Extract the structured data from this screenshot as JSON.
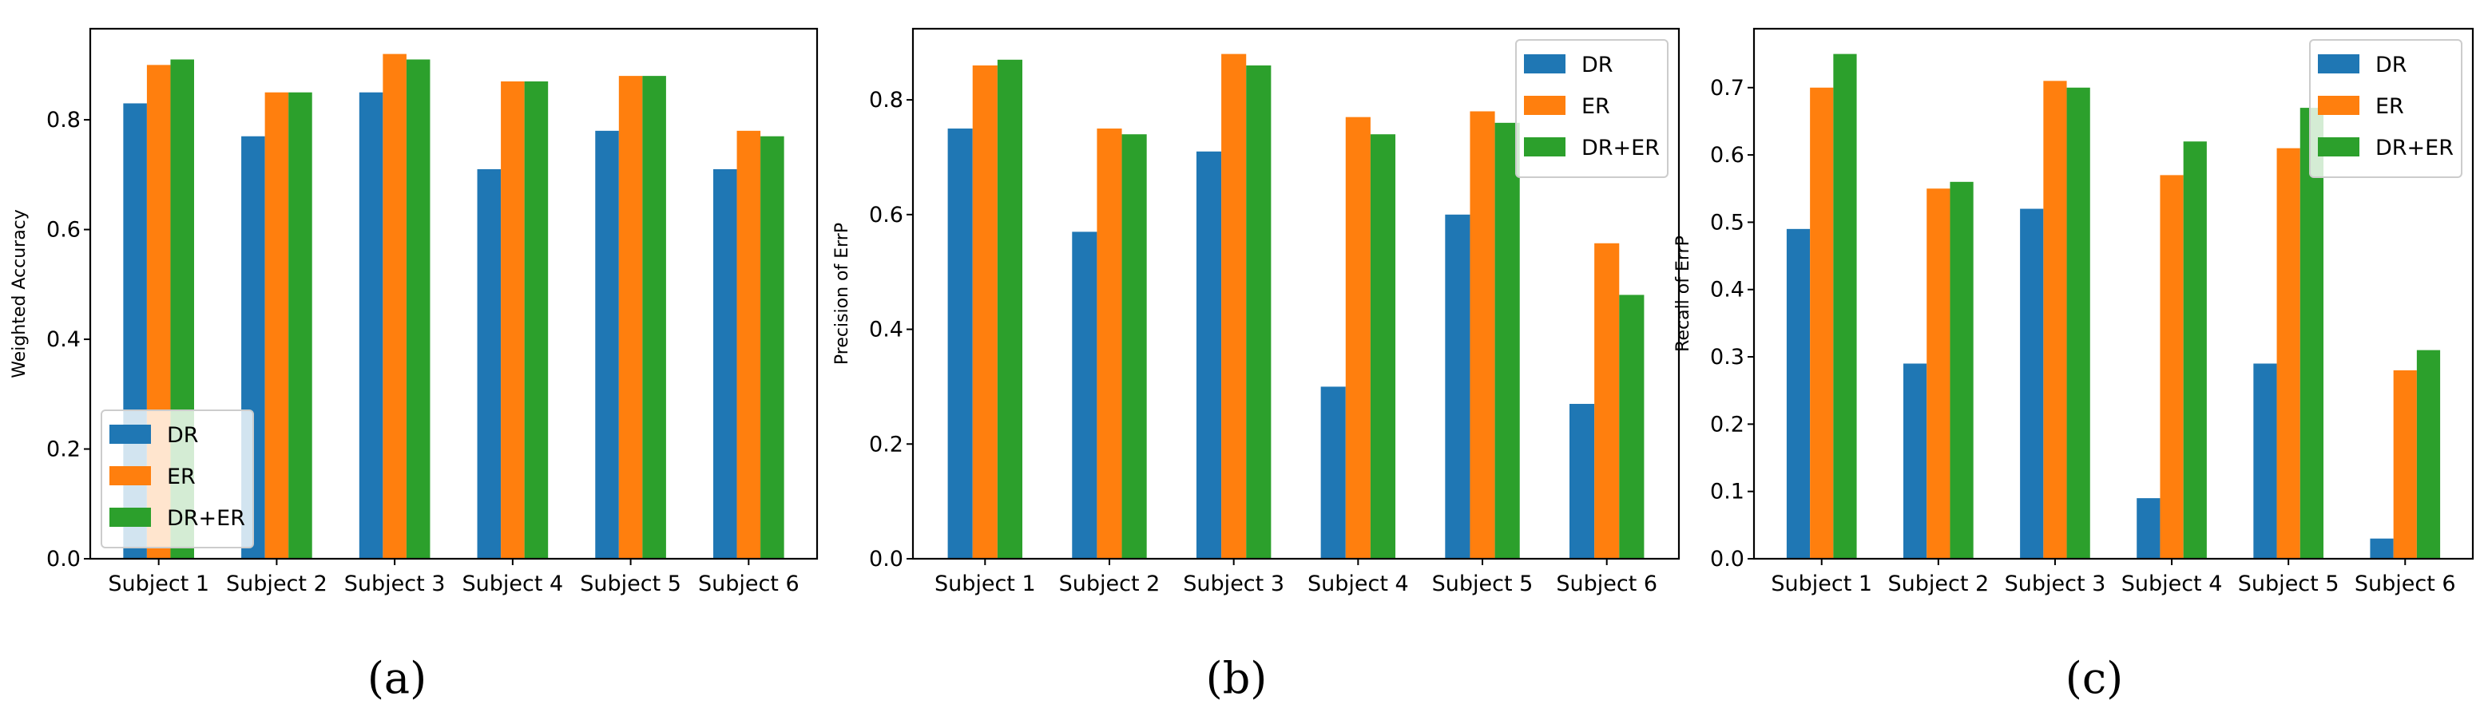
{
  "chart_data": [
    {
      "type": "bar",
      "title": "",
      "caption": "(a)",
      "xlabel": "",
      "ylabel": "Weighted Accuracy",
      "categories": [
        "Subject 1",
        "Subject 2",
        "Subject 3",
        "Subject 4",
        "Subject 5",
        "Subject 6"
      ],
      "series": [
        {
          "name": "DR",
          "color": "#1f77b4",
          "values": [
            0.83,
            0.77,
            0.85,
            0.71,
            0.78,
            0.71
          ]
        },
        {
          "name": "ER",
          "color": "#ff7f0e",
          "values": [
            0.9,
            0.85,
            0.92,
            0.87,
            0.88,
            0.78
          ]
        },
        {
          "name": "DR+ER",
          "color": "#2ca02c",
          "values": [
            0.91,
            0.85,
            0.91,
            0.87,
            0.88,
            0.77
          ]
        }
      ],
      "ylim": [
        0,
        0.966
      ],
      "yticks": [
        "0.0",
        "0.2",
        "0.4",
        "0.6",
        "0.8"
      ],
      "ytick_values": [
        0,
        0.2,
        0.4,
        0.6,
        0.8
      ],
      "legend": "lower-left",
      "grid": false
    },
    {
      "type": "bar",
      "title": "",
      "caption": "(b)",
      "xlabel": "",
      "ylabel": "Precision of ErrP",
      "categories": [
        "Subject 1",
        "Subject 2",
        "Subject 3",
        "Subject 4",
        "Subject 5",
        "Subject 6"
      ],
      "series": [
        {
          "name": "DR",
          "color": "#1f77b4",
          "values": [
            0.75,
            0.57,
            0.71,
            0.3,
            0.6,
            0.27
          ]
        },
        {
          "name": "ER",
          "color": "#ff7f0e",
          "values": [
            0.86,
            0.75,
            0.88,
            0.77,
            0.78,
            0.55
          ]
        },
        {
          "name": "DR+ER",
          "color": "#2ca02c",
          "values": [
            0.87,
            0.74,
            0.86,
            0.74,
            0.76,
            0.46
          ]
        }
      ],
      "ylim": [
        0,
        0.924
      ],
      "yticks": [
        "0.0",
        "0.2",
        "0.4",
        "0.6",
        "0.8"
      ],
      "ytick_values": [
        0,
        0.2,
        0.4,
        0.6,
        0.8
      ],
      "legend": "upper-right",
      "grid": false
    },
    {
      "type": "bar",
      "title": "",
      "caption": "(c)",
      "xlabel": "",
      "ylabel": "Recall of ErrP",
      "categories": [
        "Subject 1",
        "Subject 2",
        "Subject 3",
        "Subject 4",
        "Subject 5",
        "Subject 6"
      ],
      "series": [
        {
          "name": "DR",
          "color": "#1f77b4",
          "values": [
            0.49,
            0.29,
            0.52,
            0.09,
            0.29,
            0.03
          ]
        },
        {
          "name": "ER",
          "color": "#ff7f0e",
          "values": [
            0.7,
            0.55,
            0.71,
            0.57,
            0.61,
            0.28
          ]
        },
        {
          "name": "DR+ER",
          "color": "#2ca02c",
          "values": [
            0.75,
            0.56,
            0.7,
            0.62,
            0.67,
            0.31
          ]
        }
      ],
      "ylim": [
        0,
        0.7875
      ],
      "yticks": [
        "0.0",
        "0.1",
        "0.2",
        "0.3",
        "0.4",
        "0.5",
        "0.6",
        "0.7"
      ],
      "ytick_values": [
        0,
        0.1,
        0.2,
        0.3,
        0.4,
        0.5,
        0.6,
        0.7
      ],
      "legend": "upper-right",
      "grid": false
    }
  ]
}
